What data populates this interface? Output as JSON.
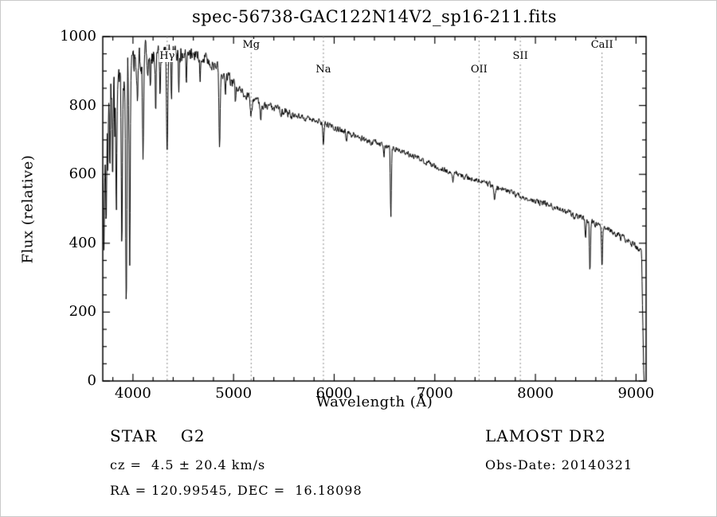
{
  "chart_data": {
    "type": "line",
    "title": "spec-56738-GAC122N14V2_sp16-211.fits",
    "xlabel": "Wavelength (Å)",
    "ylabel": "Flux (relative)",
    "xlim": [
      3700,
      9100
    ],
    "ylim": [
      0,
      1000
    ],
    "x_ticks": [
      4000,
      5000,
      6000,
      7000,
      8000,
      9000
    ],
    "x_minor_step": 200,
    "y_ticks": [
      0,
      200,
      400,
      600,
      800,
      1000
    ],
    "y_minor_step": 50,
    "grid": false,
    "legend": "none",
    "line_color": "#000000",
    "marker_line_color": "#8a8a8a",
    "series_name": "flux",
    "spectral_lines": [
      {
        "label": "Hγ",
        "wavelength": 4340,
        "row": 1
      },
      {
        "label": "Mg",
        "wavelength": 5175,
        "row": 0
      },
      {
        "label": "Na",
        "wavelength": 5893,
        "row": 2
      },
      {
        "label": "OII",
        "wavelength": 7440,
        "row": 2
      },
      {
        "label": "SII",
        "wavelength": 7850,
        "row": 1
      },
      {
        "label": "CaII",
        "wavelength": 8662,
        "row": 0
      }
    ],
    "continuum": [
      [
        3700,
        600
      ],
      [
        3725,
        720
      ],
      [
        3755,
        820
      ],
      [
        3790,
        868
      ],
      [
        3840,
        898
      ],
      [
        3900,
        915
      ],
      [
        4000,
        925
      ],
      [
        4150,
        938
      ],
      [
        4300,
        946
      ],
      [
        4450,
        953
      ],
      [
        4600,
        950
      ],
      [
        4750,
        935
      ],
      [
        4850,
        905
      ],
      [
        4950,
        878
      ],
      [
        5050,
        845
      ],
      [
        5200,
        812
      ],
      [
        5350,
        795
      ],
      [
        5500,
        780
      ],
      [
        5650,
        768
      ],
      [
        5800,
        758
      ],
      [
        5950,
        742
      ],
      [
        6100,
        724
      ],
      [
        6250,
        706
      ],
      [
        6400,
        692
      ],
      [
        6563,
        678
      ],
      [
        6700,
        662
      ],
      [
        6850,
        645
      ],
      [
        7000,
        625
      ],
      [
        7200,
        603
      ],
      [
        7440,
        582
      ],
      [
        7600,
        565
      ],
      [
        7850,
        538
      ],
      [
        8000,
        522
      ],
      [
        8200,
        503
      ],
      [
        8400,
        480
      ],
      [
        8550,
        462
      ],
      [
        8662,
        448
      ],
      [
        8800,
        425
      ],
      [
        8900,
        410
      ],
      [
        9000,
        390
      ],
      [
        9100,
        362
      ]
    ],
    "absorption_lines": [
      [
        3712,
        260,
        5
      ],
      [
        3734,
        330,
        5
      ],
      [
        3750,
        200,
        4
      ],
      [
        3771,
        280,
        5
      ],
      [
        3798,
        340,
        5
      ],
      [
        3820,
        180,
        4
      ],
      [
        3835,
        470,
        5
      ],
      [
        3889,
        530,
        6
      ],
      [
        3933,
        690,
        6
      ],
      [
        3968,
        600,
        6
      ],
      [
        4045,
        120,
        4
      ],
      [
        4101,
        290,
        6
      ],
      [
        4172,
        110,
        4
      ],
      [
        4226,
        150,
        4
      ],
      [
        4271,
        110,
        4
      ],
      [
        4340,
        300,
        6
      ],
      [
        4383,
        130,
        4
      ],
      [
        4455,
        90,
        4
      ],
      [
        4531,
        80,
        4
      ],
      [
        4668,
        70,
        4
      ],
      [
        4861,
        240,
        6
      ],
      [
        4920,
        60,
        4
      ],
      [
        5018,
        50,
        4
      ],
      [
        5175,
        40,
        9
      ],
      [
        5270,
        45,
        5
      ],
      [
        5893,
        55,
        5
      ],
      [
        6122,
        30,
        4
      ],
      [
        6495,
        30,
        4
      ],
      [
        6563,
        205,
        5
      ],
      [
        7180,
        25,
        6
      ],
      [
        7594,
        35,
        7
      ],
      [
        8498,
        55,
        5
      ],
      [
        8542,
        145,
        5
      ],
      [
        8662,
        125,
        5
      ]
    ],
    "noise": {
      "seed": 20140321,
      "smooth": 0.45,
      "amplitude_by_wavelength": [
        [
          3760,
          45
        ],
        [
          3980,
          55
        ],
        [
          4150,
          35
        ],
        [
          4500,
          24
        ],
        [
          5000,
          16
        ],
        [
          5600,
          11
        ],
        [
          6500,
          8
        ],
        [
          8000,
          7
        ],
        [
          8800,
          8
        ],
        [
          9100,
          9
        ]
      ]
    },
    "cutoff": {
      "start": 9055,
      "end": 9078
    }
  },
  "annotations": {
    "class_line": "STAR    G2",
    "cz_line": "cz =  4.5 ± 20.4 km/s",
    "radec_line": "RA = 120.99545, DEC =  16.18098",
    "survey": "LAMOST DR2",
    "obs_date": "Obs-Date: 20140321"
  }
}
